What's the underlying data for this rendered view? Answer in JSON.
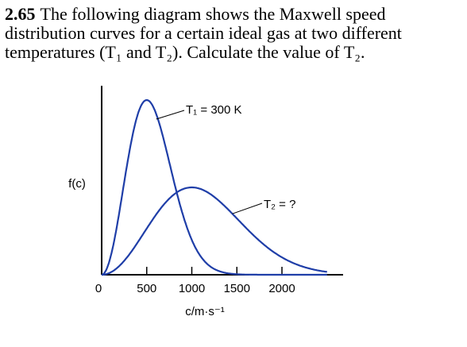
{
  "problem": {
    "number": "2.65",
    "text": "The following diagram shows the Maxwell speed distribution curves for a certain ideal gas at two different temperatures (T₁ and T₂). Calculate the value of T₂."
  },
  "colors": {
    "curve": "#1f3ea8",
    "axis": "#000000",
    "background": "#ffffff"
  },
  "chart_data": {
    "type": "line",
    "xlabel": "c/m·s⁻¹",
    "ylabel": "f(c)",
    "xlim": [
      0,
      2500
    ],
    "x_ticks": [
      0,
      500,
      1000,
      1500,
      2000
    ],
    "x_tick_labels": [
      "0",
      "500",
      "1000",
      "1500",
      "2000"
    ],
    "grid": false,
    "series": [
      {
        "name": "T₁ = 300 K",
        "most_probable_speed": 500,
        "relative_peak_height": 1.0
      },
      {
        "name": "T₂ = ?",
        "most_probable_speed": 1000,
        "relative_peak_height": 0.5
      }
    ]
  }
}
